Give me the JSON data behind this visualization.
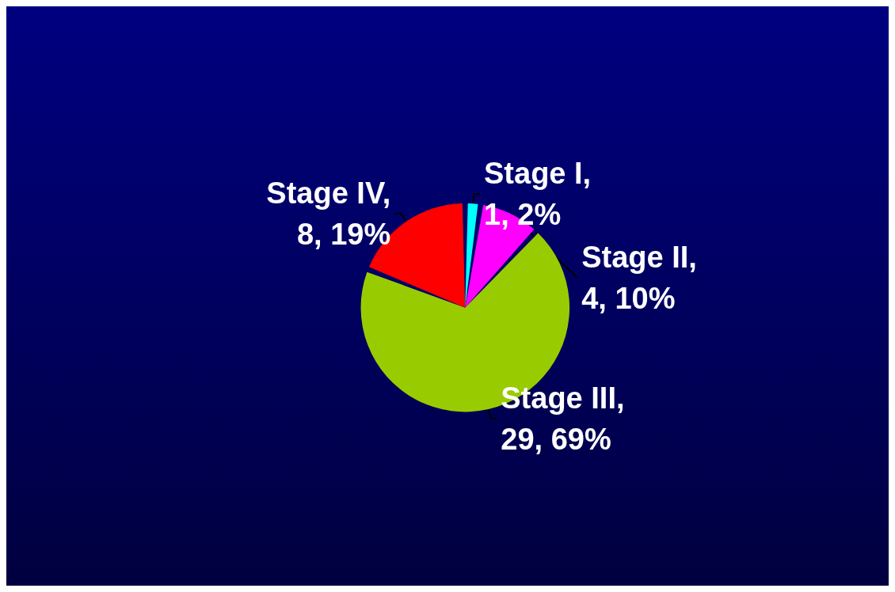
{
  "chart_data": {
    "type": "pie",
    "categories": [
      "Stage I",
      "Stage II",
      "Stage III",
      "Stage IV"
    ],
    "values": [
      1,
      4,
      29,
      8
    ],
    "value_labels": [
      ",\n1, 2%",
      ",\n4, 10%",
      ",\n29, 69%",
      ",\n8, 19%"
    ],
    "colors": [
      "#00ffff",
      "#ff00ff",
      "#99cc00",
      "#ff0000"
    ]
  }
}
